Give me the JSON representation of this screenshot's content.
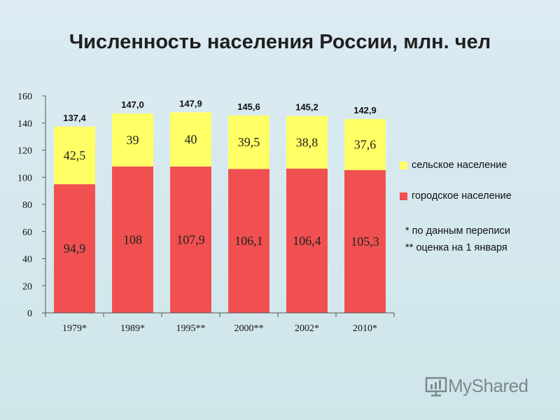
{
  "chart_data": {
    "type": "bar",
    "stacked": true,
    "title": "Численность населения России, млн. чел",
    "categories": [
      "1979*",
      "1989*",
      "1995**",
      "2000**",
      "2002*",
      "2010*"
    ],
    "series": [
      {
        "name": "городское население",
        "values": [
          94.9,
          108,
          107.9,
          106.1,
          106.4,
          105.3
        ],
        "labels": [
          "94,9",
          "108",
          "107,9",
          "106,1",
          "106,4",
          "105,3"
        ],
        "color": "#f05050"
      },
      {
        "name": "сельское население",
        "values": [
          42.5,
          39,
          40,
          39.5,
          38.8,
          37.6
        ],
        "labels": [
          "42,5",
          "39",
          "40",
          "39,5",
          "38,8",
          "37,6"
        ],
        "color": "#ffff66"
      }
    ],
    "totals": [
      "137,4",
      "147,0",
      "147,9",
      "145,6",
      "145,2",
      "142,9"
    ],
    "ylim": [
      0,
      160
    ],
    "yticks": [
      0,
      20,
      40,
      60,
      80,
      100,
      120,
      140,
      160
    ],
    "grid": false,
    "legend_position": "right",
    "notes": [
      "* по данным переписи",
      "** оценка на 1 января"
    ]
  },
  "logo": {
    "text": "MyShared"
  }
}
